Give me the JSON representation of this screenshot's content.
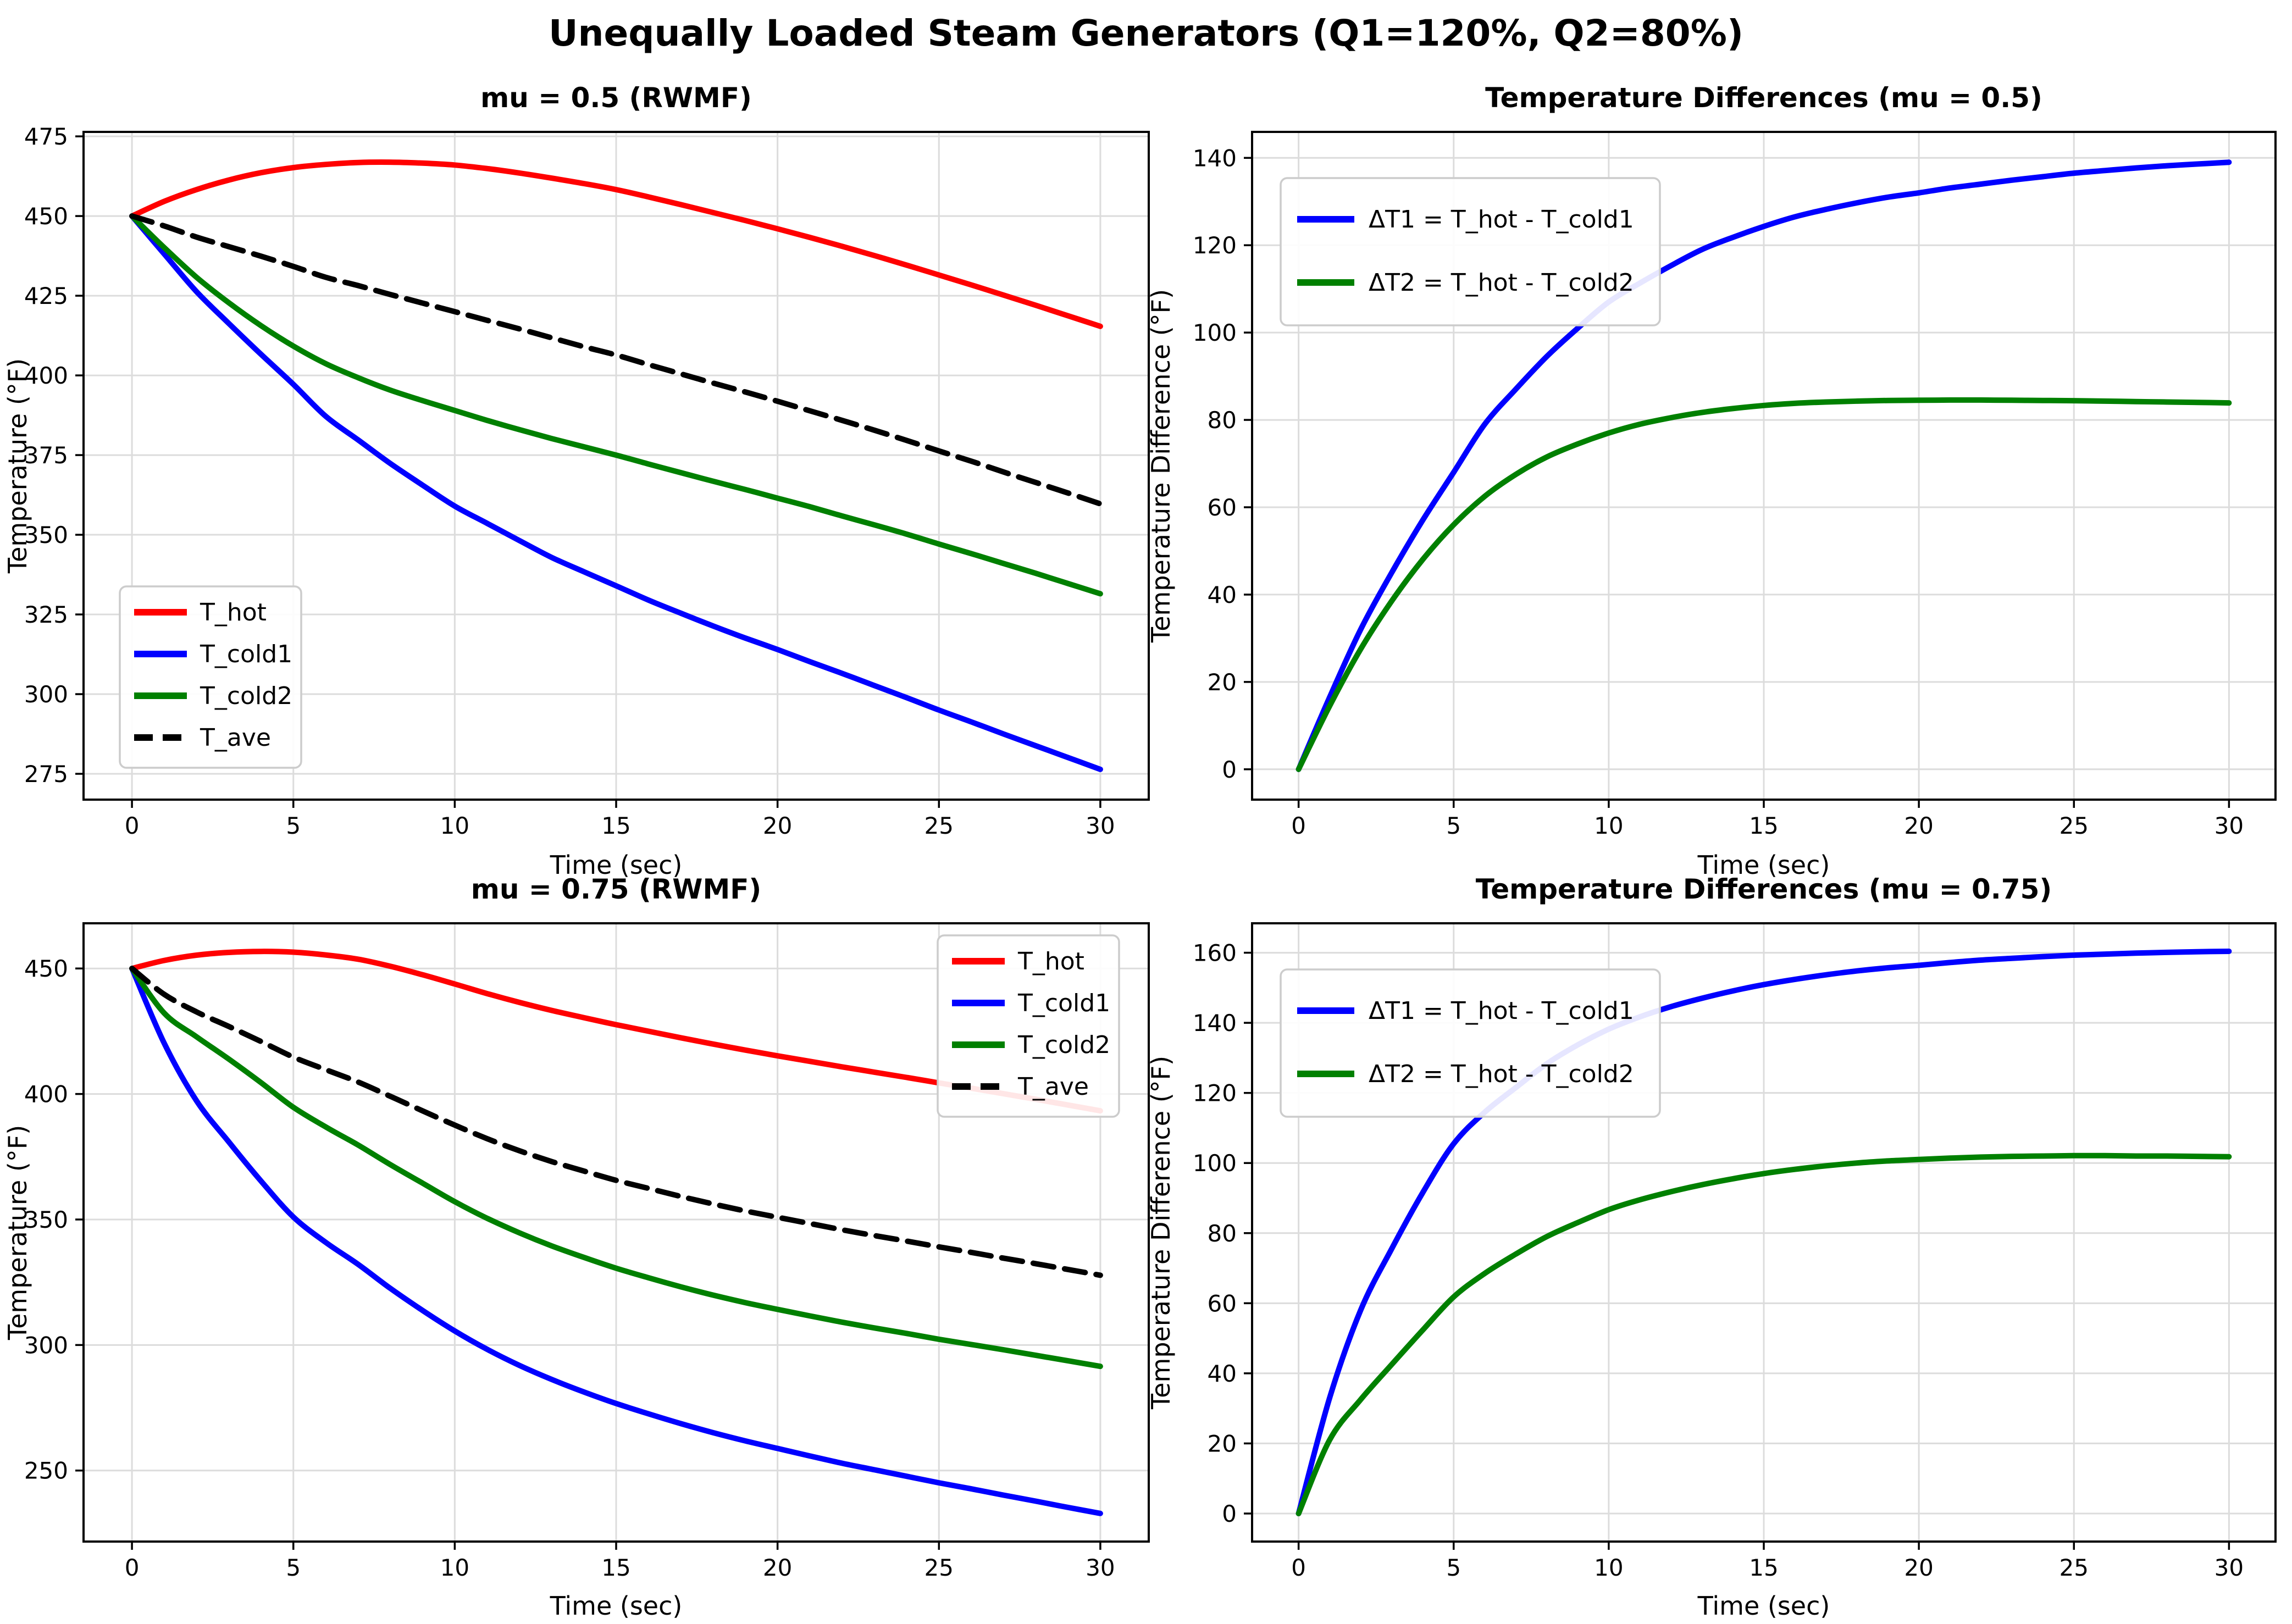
{
  "figure": {
    "suptitle": "Unequally Loaded Steam Generators (Q1=120%, Q2=80%)",
    "background": "#ffffff",
    "grid_color": "#dcdcdc",
    "spine_color": "#000000"
  },
  "chart_data": {
    "type": "line",
    "x_shared": [
      0,
      1,
      2,
      3,
      4,
      5,
      6,
      7,
      8,
      9,
      10,
      11,
      12,
      13,
      14,
      15,
      16,
      17,
      18,
      19,
      20,
      21,
      22,
      23,
      24,
      25,
      26,
      27,
      28,
      29,
      30
    ],
    "charts": [
      {
        "title": "mu = 0.5 (RWMF)",
        "xlabel": "Time (sec)",
        "ylabel": "Temperature (°F)",
        "xlim": [
          -1.5,
          31.5
        ],
        "ylim": [
          266.9,
          476.4
        ],
        "xticks": [
          0,
          5,
          10,
          15,
          20,
          25,
          30
        ],
        "yticks": [
          275,
          300,
          325,
          350,
          375,
          400,
          425,
          450,
          475
        ],
        "grid": true,
        "legend_location": "lower-left",
        "series": [
          {
            "name": "T_hot",
            "color": "#ff0000",
            "dash": "solid",
            "values": [
              450.0,
              454.6,
              458.3,
              461.3,
              463.6,
              465.2,
              466.2,
              466.8,
              466.9,
              466.6,
              466.0,
              464.9,
              463.5,
              461.9,
              460.2,
              458.3,
              456.0,
              453.6,
              451.1,
              448.6,
              446.0,
              443.3,
              440.5,
              437.6,
              434.6,
              431.5,
              428.4,
              425.2,
              422.0,
              418.7,
              415.4
            ]
          },
          {
            "name": "T_cold1",
            "color": "#0000ff",
            "dash": "solid",
            "values": [
              450.0,
              438.1,
              426.3,
              416.3,
              406.6,
              397.2,
              387.2,
              379.8,
              372.4,
              365.6,
              359.0,
              353.6,
              348.2,
              342.9,
              338.4,
              334.0,
              329.5,
              325.4,
              321.4,
              317.6,
              314.0,
              310.2,
              306.5,
              302.7,
              298.9,
              295.0,
              291.3,
              287.5,
              283.8,
              280.1,
              276.4
            ]
          },
          {
            "name": "T_cold2",
            "color": "#008000",
            "dash": "solid",
            "values": [
              450.0,
              440.1,
              430.8,
              422.8,
              415.6,
              409.2,
              403.7,
              399.3,
              395.4,
              392.1,
              389.0,
              385.9,
              383.0,
              380.2,
              377.6,
              375.0,
              372.2,
              369.5,
              366.8,
              364.2,
              361.5,
              358.8,
              355.9,
              353.1,
              350.2,
              347.1,
              344.1,
              341.0,
              337.9,
              334.7,
              331.5
            ]
          },
          {
            "name": "T_ave",
            "color": "#000000",
            "dash": "dashed",
            "values": [
              450.0,
              446.9,
              443.4,
              440.4,
              437.4,
              434.2,
              430.8,
              428.2,
              425.4,
              422.7,
              420.0,
              417.3,
              414.6,
              411.8,
              409.0,
              406.4,
              403.4,
              400.5,
              397.6,
              394.8,
              391.9,
              388.9,
              385.9,
              382.8,
              379.6,
              376.3,
              373.1,
              369.7,
              366.4,
              363.1,
              359.7
            ]
          }
        ]
      },
      {
        "title": "Temperature Differences (mu = 0.5)",
        "xlabel": "Time (sec)",
        "ylabel": "Temperature Difference (°F)",
        "xlim": [
          -1.5,
          31.5
        ],
        "ylim": [
          -6.95,
          145.95
        ],
        "xticks": [
          0,
          5,
          10,
          15,
          20,
          25,
          30
        ],
        "yticks": [
          0,
          20,
          40,
          60,
          80,
          100,
          120,
          140
        ],
        "grid": true,
        "legend_location": "upper-left",
        "series": [
          {
            "name": "ΔT1 = T_hot - T_cold1",
            "color": "#0000ff",
            "dash": "solid",
            "values": [
              0,
              16.5,
              32,
              45,
              57,
              68,
              79,
              87,
              94.5,
              101,
              107,
              111.3,
              115.3,
              119,
              121.8,
              124.3,
              126.5,
              128.2,
              129.7,
              131,
              132,
              133.1,
              134,
              134.9,
              135.7,
              136.5,
              137.1,
              137.7,
              138.2,
              138.6,
              139
            ]
          },
          {
            "name": "ΔT2 = T_hot - T_cold2",
            "color": "#008000",
            "dash": "solid",
            "values": [
              0,
              14.5,
              27.5,
              38.5,
              48,
              56,
              62.5,
              67.5,
              71.5,
              74.5,
              77,
              79,
              80.5,
              81.7,
              82.6,
              83.3,
              83.8,
              84.1,
              84.3,
              84.45,
              84.5,
              84.55,
              84.55,
              84.5,
              84.45,
              84.4,
              84.3,
              84.2,
              84.1,
              84.0,
              83.9
            ]
          }
        ]
      },
      {
        "title": "mu = 0.75 (RWMF)",
        "xlabel": "Time (sec)",
        "ylabel": "Temperature (°F)",
        "xlim": [
          -1.5,
          31.5
        ],
        "ylim": [
          221.7,
          468.0
        ],
        "xticks": [
          0,
          5,
          10,
          15,
          20,
          25,
          30
        ],
        "yticks": [
          250,
          300,
          350,
          400,
          450
        ],
        "grid": true,
        "legend_location": "upper-right",
        "series": [
          {
            "name": "T_hot",
            "color": "#ff0000",
            "dash": "solid",
            "values": [
              450.0,
              453.2,
              455.3,
              456.4,
              456.8,
              456.5,
              455.4,
              453.7,
              450.9,
              447.5,
              443.8,
              440.0,
              436.5,
              433.3,
              430.4,
              427.6,
              425.0,
              422.4,
              419.9,
              417.5,
              415.2,
              413.0,
              410.8,
              408.7,
              406.6,
              404.4,
              402.3,
              400.1,
              397.9,
              395.6,
              393.3
            ]
          },
          {
            "name": "T_cold1",
            "color": "#0000ff",
            "dash": "solid",
            "values": [
              450.0,
              420.2,
              397.3,
              380.9,
              365.3,
              351.0,
              340.9,
              332.2,
              322.6,
              313.8,
              305.6,
              298.3,
              291.9,
              286.3,
              281.3,
              276.7,
              272.6,
              268.7,
              265.1,
              261.8,
              258.8,
              255.8,
              252.9,
              250.3,
              247.7,
              245.1,
              242.7,
              240.2,
              237.8,
              235.3,
              232.9
            ]
          },
          {
            "name": "T_cold2",
            "color": "#008000",
            "dash": "solid",
            "values": [
              450.0,
              432.2,
              422.8,
              413.9,
              404.5,
              394.7,
              386.9,
              379.7,
              371.9,
              364.5,
              357.1,
              350.5,
              344.7,
              339.5,
              334.9,
              330.6,
              326.8,
              323.2,
              319.9,
              316.9,
              314.2,
              311.6,
              309.1,
              306.8,
              304.6,
              302.3,
              300.2,
              298.1,
              295.9,
              293.7,
              291.5
            ]
          },
          {
            "name": "T_ave",
            "color": "#000000",
            "dash": "dashed",
            "values": [
              450.0,
              439.7,
              432.7,
              426.9,
              420.9,
              414.7,
              409.7,
              404.8,
              399.1,
              393.3,
              387.6,
              382.2,
              377.4,
              373.1,
              369.3,
              365.6,
              362.4,
              359.2,
              356.2,
              353.4,
              350.9,
              348.4,
              345.9,
              343.6,
              341.4,
              339.1,
              336.9,
              334.6,
              332.4,
              330.1,
              327.8
            ]
          }
        ]
      },
      {
        "title": "Temperature Differences (mu = 0.75)",
        "xlabel": "Time (sec)",
        "ylabel": "Temperature Difference (°F)",
        "xlim": [
          -1.5,
          31.5
        ],
        "ylim": [
          -8.0,
          168.4
        ],
        "xticks": [
          0,
          5,
          10,
          15,
          20,
          25,
          30
        ],
        "yticks": [
          0,
          20,
          40,
          60,
          80,
          100,
          120,
          140,
          160
        ],
        "grid": true,
        "legend_location": "upper-left",
        "series": [
          {
            "name": "ΔT1 = T_hot - T_cold1",
            "color": "#0000ff",
            "dash": "solid",
            "values": [
              0,
              33,
              58,
              75.5,
              91.5,
              105.5,
              114.5,
              121.5,
              128.3,
              133.7,
              138.2,
              141.7,
              144.6,
              147.0,
              149.1,
              150.9,
              152.4,
              153.7,
              154.8,
              155.7,
              156.4,
              157.2,
              157.9,
              158.4,
              158.9,
              159.3,
              159.6,
              159.9,
              160.1,
              160.3,
              160.4
            ]
          },
          {
            "name": "ΔT2 = T_hot - T_cold2",
            "color": "#008000",
            "dash": "solid",
            "values": [
              0,
              21,
              32.5,
              42.5,
              52.3,
              61.8,
              68.5,
              74,
              79,
              83,
              86.7,
              89.5,
              91.8,
              93.8,
              95.5,
              97,
              98.2,
              99.2,
              100,
              100.6,
              101,
              101.4,
              101.7,
              101.9,
              102,
              102.1,
              102.1,
              102,
              102,
              101.9,
              101.8
            ]
          }
        ]
      }
    ]
  }
}
